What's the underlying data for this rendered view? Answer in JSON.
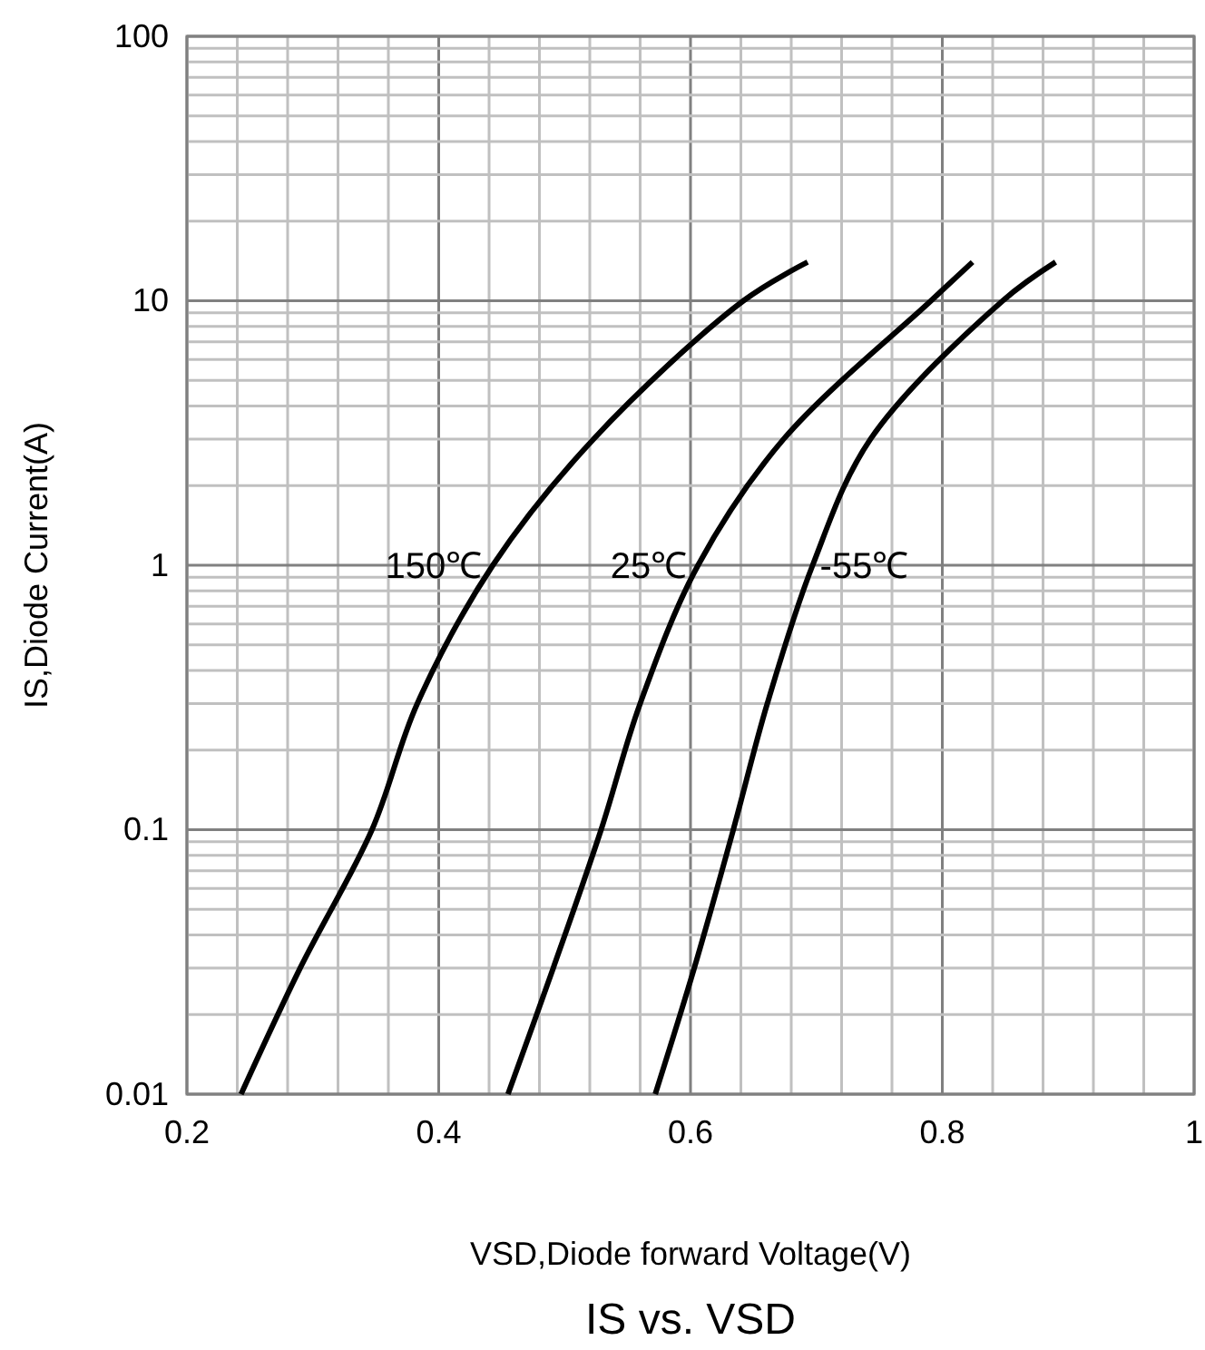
{
  "chart_data": {
    "type": "line",
    "title": "IS vs. VSD",
    "xlabel": "VSD,Diode forward Voltage(V)",
    "ylabel": "IS,Diode Current(A)",
    "log": "y",
    "grid": true,
    "marker": "none",
    "line_style": "solid",
    "xlim": [
      0.2,
      1
    ],
    "ylim": [
      0.01,
      100
    ],
    "xticks": [
      0.2,
      {
        "value": 0.24,
        "label": null
      },
      {
        "value": 0.28,
        "label": null
      },
      {
        "value": 0.32,
        "label": null
      },
      {
        "value": 0.36,
        "label": null
      },
      0.4,
      {
        "value": 0.44,
        "label": null
      },
      {
        "value": 0.48,
        "label": null
      },
      {
        "value": 0.52,
        "label": null
      },
      {
        "value": 0.56,
        "label": null
      },
      0.6,
      {
        "value": 0.64,
        "label": null
      },
      {
        "value": 0.68,
        "label": null
      },
      {
        "value": 0.72,
        "label": null
      },
      {
        "value": 0.76,
        "label": null
      },
      0.8,
      {
        "value": 0.84,
        "label": null
      },
      {
        "value": 0.88,
        "label": null
      },
      {
        "value": 0.92,
        "label": null
      },
      {
        "value": 0.96,
        "label": null
      },
      1
    ],
    "yticks": [
      0.01,
      {
        "value": 0.02,
        "label": null
      },
      {
        "value": 0.03,
        "label": null
      },
      {
        "value": 0.04,
        "label": null
      },
      {
        "value": 0.05,
        "label": null
      },
      {
        "value": 0.06,
        "label": null
      },
      {
        "value": 0.07,
        "label": null
      },
      {
        "value": 0.08,
        "label": null
      },
      {
        "value": 0.09,
        "label": null
      },
      0.1,
      {
        "value": 0.2,
        "label": null
      },
      {
        "value": 0.3,
        "label": null
      },
      {
        "value": 0.4,
        "label": null
      },
      {
        "value": 0.5,
        "label": null
      },
      {
        "value": 0.6,
        "label": null
      },
      {
        "value": 0.7,
        "label": null
      },
      {
        "value": 0.8,
        "label": null
      },
      {
        "value": 0.9,
        "label": null
      },
      1,
      {
        "value": 2,
        "label": null
      },
      {
        "value": 3,
        "label": null
      },
      {
        "value": 4,
        "label": null
      },
      {
        "value": 5,
        "label": null
      },
      {
        "value": 6,
        "label": null
      },
      {
        "value": 7,
        "label": null
      },
      {
        "value": 8,
        "label": null
      },
      {
        "value": 9,
        "label": null
      },
      10,
      {
        "value": 20,
        "label": null
      },
      {
        "value": 30,
        "label": null
      },
      {
        "value": 40,
        "label": null
      },
      {
        "value": 50,
        "label": null
      },
      {
        "value": 60,
        "label": null
      },
      {
        "value": 70,
        "label": null
      },
      {
        "value": 80,
        "label": null
      },
      {
        "value": 90,
        "label": null
      },
      100
    ],
    "series": [
      {
        "name": "150℃",
        "color": "#000000",
        "x": [
          0.243,
          0.29,
          0.347,
          0.383,
          0.443,
          0.523,
          0.642,
          0.693
        ],
        "values": [
          0.01,
          0.03,
          0.1,
          0.3,
          1,
          3,
          10,
          14
        ]
      },
      {
        "name": "25℃",
        "color": "#000000",
        "x": [
          0.455,
          0.491,
          0.529,
          0.56,
          0.606,
          0.674,
          0.791,
          0.824
        ],
        "values": [
          0.01,
          0.03,
          0.1,
          0.3,
          1,
          3,
          10,
          14
        ]
      },
      {
        "name": "-55℃",
        "color": "#000000",
        "x": [
          0.572,
          0.603,
          0.634,
          0.661,
          0.697,
          0.743,
          0.848,
          0.89
        ],
        "values": [
          0.01,
          0.03,
          0.1,
          0.3,
          1,
          3,
          10,
          14
        ]
      }
    ]
  }
}
